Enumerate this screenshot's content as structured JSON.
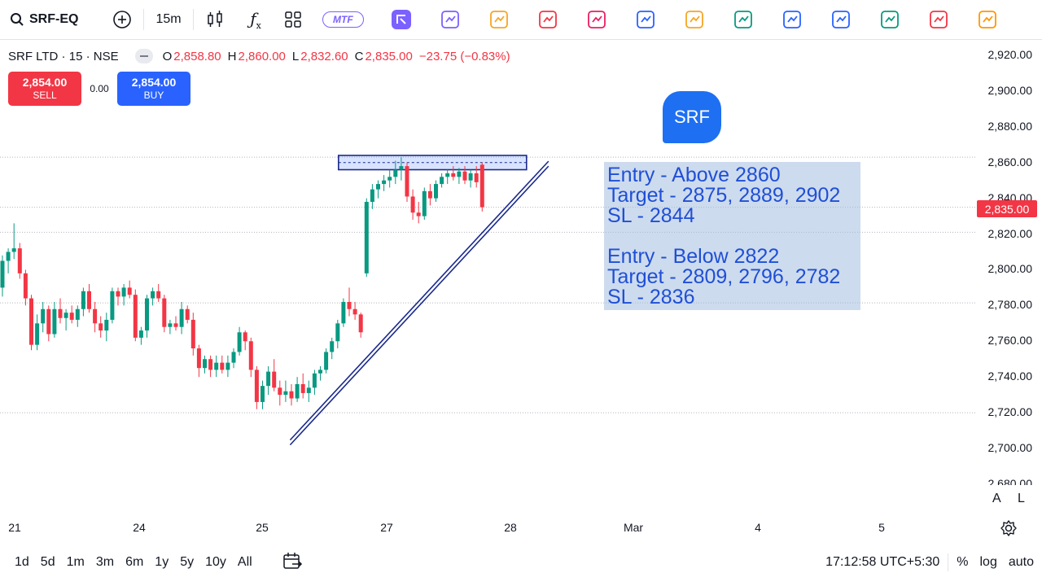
{
  "toolbar": {
    "symbol": "SRF-EQ",
    "interval": "15m",
    "mtf_label": "MTF",
    "tool_icons": [
      "brand-icon",
      "bar-chart-icon",
      "coin-icon",
      "exit-icon",
      "stock-icon",
      "sort-arrows-icon",
      "basket-icon",
      "shield-check-icon",
      "resize-icon",
      "download-icon",
      "chart-up-icon",
      "alarm-icon",
      "briefcase-icon"
    ]
  },
  "legend": {
    "title": "SRF LTD · 15 · NSE",
    "o_key": "O",
    "o_val": "2,858.80",
    "h_key": "H",
    "h_val": "2,860.00",
    "l_key": "L",
    "l_val": "2,832.60",
    "c_key": "C",
    "c_val": "2,835.00",
    "change": "−23.75 (−0.83%)"
  },
  "trade": {
    "sell_price": "2,854.00",
    "sell_label": "SELL",
    "spread": "0.00",
    "buy_price": "2,854.00",
    "buy_label": "BUY"
  },
  "badge": {
    "text": "SRF"
  },
  "note": {
    "lines": [
      "Entry - Above 2860",
      "Target - 2875, 2889, 2902",
      "SL - 2844",
      "",
      "Entry - Below 2822",
      "Target - 2809, 2796, 2782",
      "SL - 2836"
    ]
  },
  "price_axis": {
    "labels": [
      "2,920.00",
      "2,900.00",
      "2,880.00",
      "2,860.00",
      "2,840.00",
      "2,820.00",
      "2,800.00",
      "2,780.00",
      "2,760.00",
      "2,740.00",
      "2,720.00",
      "2,700.00",
      "2,680.00"
    ],
    "last_price": "2,835.00",
    "auto_label": "A",
    "log_label": "L"
  },
  "time_axis": {
    "labels": [
      "21",
      "24",
      "25",
      "27",
      "28",
      "Mar",
      "4",
      "5"
    ]
  },
  "bottom": {
    "ranges": [
      "1d",
      "5d",
      "1m",
      "3m",
      "6m",
      "1y",
      "5y",
      "10y",
      "All"
    ],
    "time": "17:12:58 UTC+5:30",
    "percent": "%",
    "log": "log",
    "auto": "auto"
  },
  "colors": {
    "up": "#089981",
    "down": "#f23645",
    "trendline": "#1a2a8c",
    "accent": "#2962ff"
  },
  "chart_data": {
    "type": "candlestick",
    "title": "SRF LTD · 15 · NSE",
    "ylim": [
      2680,
      2925
    ],
    "x_ticks": [
      "21",
      "24",
      "25",
      "27",
      "28",
      "Mar",
      "4",
      "5"
    ],
    "candles": [
      [
        2790,
        2808,
        2785,
        2805
      ],
      [
        2805,
        2812,
        2798,
        2810
      ],
      [
        2810,
        2826,
        2806,
        2812
      ],
      [
        2812,
        2815,
        2795,
        2798
      ],
      [
        2798,
        2800,
        2780,
        2784
      ],
      [
        2784,
        2786,
        2755,
        2758
      ],
      [
        2758,
        2775,
        2755,
        2770
      ],
      [
        2770,
        2782,
        2765,
        2778
      ],
      [
        2778,
        2780,
        2760,
        2764
      ],
      [
        2764,
        2782,
        2762,
        2778
      ],
      [
        2778,
        2784,
        2770,
        2773
      ],
      [
        2773,
        2778,
        2766,
        2776
      ],
      [
        2776,
        2780,
        2770,
        2772
      ],
      [
        2772,
        2780,
        2768,
        2778
      ],
      [
        2778,
        2790,
        2774,
        2788
      ],
      [
        2788,
        2792,
        2776,
        2778
      ],
      [
        2778,
        2782,
        2765,
        2770
      ],
      [
        2770,
        2774,
        2762,
        2766
      ],
      [
        2766,
        2776,
        2760,
        2772
      ],
      [
        2772,
        2790,
        2770,
        2788
      ],
      [
        2788,
        2790,
        2780,
        2785
      ],
      [
        2785,
        2792,
        2780,
        2790
      ],
      [
        2790,
        2794,
        2784,
        2786
      ],
      [
        2786,
        2789,
        2760,
        2762
      ],
      [
        2762,
        2768,
        2758,
        2766
      ],
      [
        2766,
        2786,
        2762,
        2784
      ],
      [
        2784,
        2790,
        2780,
        2788
      ],
      [
        2788,
        2792,
        2782,
        2784
      ],
      [
        2784,
        2786,
        2765,
        2768
      ],
      [
        2768,
        2772,
        2764,
        2770
      ],
      [
        2770,
        2774,
        2766,
        2768
      ],
      [
        2768,
        2782,
        2764,
        2778
      ],
      [
        2778,
        2780,
        2770,
        2772
      ],
      [
        2772,
        2776,
        2752,
        2756
      ],
      [
        2756,
        2758,
        2740,
        2745
      ],
      [
        2745,
        2752,
        2742,
        2750
      ],
      [
        2750,
        2752,
        2740,
        2744
      ],
      [
        2744,
        2752,
        2740,
        2748
      ],
      [
        2748,
        2752,
        2742,
        2744
      ],
      [
        2744,
        2752,
        2740,
        2748
      ],
      [
        2748,
        2756,
        2745,
        2754
      ],
      [
        2754,
        2768,
        2752,
        2765
      ],
      [
        2765,
        2766,
        2755,
        2760
      ],
      [
        2760,
        2762,
        2740,
        2744
      ],
      [
        2744,
        2746,
        2722,
        2726
      ],
      [
        2726,
        2738,
        2722,
        2735
      ],
      [
        2735,
        2746,
        2730,
        2743
      ],
      [
        2743,
        2750,
        2732,
        2734
      ],
      [
        2734,
        2738,
        2724,
        2730
      ],
      [
        2730,
        2738,
        2726,
        2732
      ],
      [
        2732,
        2736,
        2724,
        2728
      ],
      [
        2728,
        2740,
        2726,
        2736
      ],
      [
        2736,
        2742,
        2728,
        2731
      ],
      [
        2731,
        2738,
        2726,
        2734
      ],
      [
        2734,
        2744,
        2730,
        2742
      ],
      [
        2742,
        2746,
        2738,
        2744
      ],
      [
        2744,
        2756,
        2742,
        2754
      ],
      [
        2754,
        2762,
        2750,
        2760
      ],
      [
        2760,
        2772,
        2756,
        2770
      ],
      [
        2770,
        2784,
        2768,
        2782
      ],
      [
        2782,
        2790,
        2774,
        2778
      ],
      [
        2778,
        2782,
        2772,
        2775
      ],
      [
        2775,
        2776,
        2762,
        2765
      ],
      [
        2798,
        2840,
        2796,
        2838
      ],
      [
        2838,
        2848,
        2834,
        2845
      ],
      [
        2845,
        2850,
        2840,
        2848
      ],
      [
        2848,
        2853,
        2844,
        2850
      ],
      [
        2850,
        2856,
        2846,
        2852
      ],
      [
        2852,
        2861,
        2848,
        2856
      ],
      [
        2856,
        2863,
        2850,
        2858
      ],
      [
        2858,
        2860,
        2838,
        2841
      ],
      [
        2841,
        2845,
        2828,
        2832
      ],
      [
        2832,
        2838,
        2826,
        2830
      ],
      [
        2830,
        2846,
        2828,
        2844
      ],
      [
        2844,
        2848,
        2836,
        2840
      ],
      [
        2840,
        2850,
        2838,
        2848
      ],
      [
        2848,
        2854,
        2846,
        2852
      ],
      [
        2852,
        2856,
        2848,
        2854
      ],
      [
        2854,
        2858,
        2850,
        2852
      ],
      [
        2852,
        2857,
        2848,
        2855
      ],
      [
        2855,
        2858,
        2848,
        2850
      ],
      [
        2850,
        2856,
        2846,
        2854
      ],
      [
        2854,
        2858,
        2846,
        2849
      ],
      [
        2858.8,
        2860,
        2832.6,
        2835
      ]
    ],
    "horizontal_lines": [
      2863,
      2835,
      2821,
      2781.5,
      2720
    ],
    "zone": {
      "from": 2856,
      "to": 2864
    },
    "trendline": {
      "from": {
        "candle": 44,
        "price": 2702
      },
      "to": {
        "candle": 88,
        "price": 2858
      }
    }
  }
}
